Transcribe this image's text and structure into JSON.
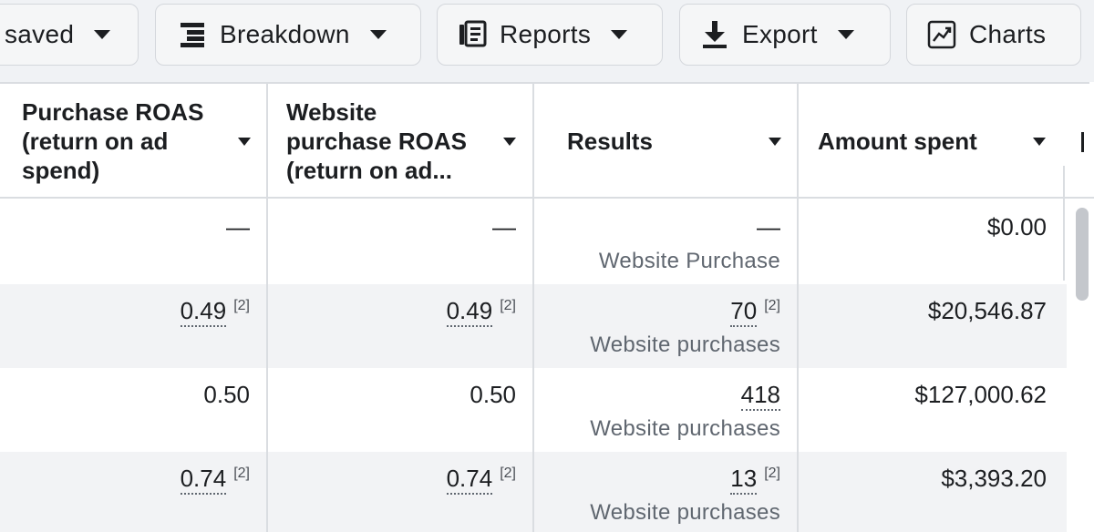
{
  "toolbar": {
    "saved_label": "saved",
    "breakdown_label": "Breakdown",
    "reports_label": "Reports",
    "export_label": "Export",
    "charts_label": "Charts"
  },
  "table": {
    "headers": [
      {
        "label": "Purchase ROAS (return on ad spend)"
      },
      {
        "label": "Website purchase ROAS (return on ad..."
      },
      {
        "label": "Results"
      },
      {
        "label": "Amount spent"
      }
    ],
    "rows": [
      {
        "purchase_roas": "—",
        "website_roas": "—",
        "results": "—",
        "results_label": "Website Purchase",
        "amount_spent": "$0.00"
      },
      {
        "purchase_roas": "0.49",
        "purchase_roas_note": "[2]",
        "website_roas": "0.49",
        "website_roas_note": "[2]",
        "results": "70",
        "results_note": "[2]",
        "results_label": "Website purchases",
        "amount_spent": "$20,546.87"
      },
      {
        "purchase_roas": "0.50",
        "website_roas": "0.50",
        "results": "418",
        "results_label": "Website purchases",
        "amount_spent": "$127,000.62"
      },
      {
        "purchase_roas": "0.74",
        "purchase_roas_note": "[2]",
        "website_roas": "0.74",
        "website_roas_note": "[2]",
        "results": "13",
        "results_note": "[2]",
        "results_label": "Website purchases",
        "amount_spent": "$3,393.20"
      }
    ]
  },
  "colors": {
    "toolbar_bg": "#f0f2f5",
    "button_bg": "#f5f6f7",
    "alt_row_bg": "#f2f3f5",
    "secondary_text": "#606770"
  }
}
